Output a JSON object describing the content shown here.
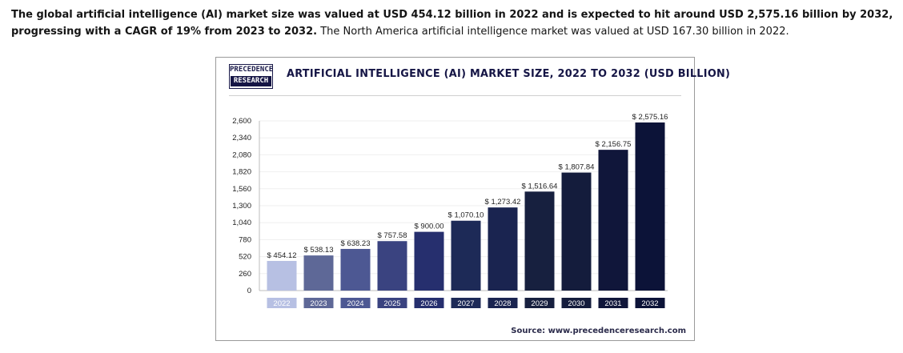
{
  "intro": {
    "sentence1": "The global artificial intelligence (AI) market size was valued at USD 454.12 billion in 2022 and is expected to hit around USD 2,575.16 billion by 2032, progressing with a CAGR of 19% from 2023 to 2032.",
    "sentence2": " The North America artificial intelligence market was valued at USD 167.30 billion in 2022."
  },
  "logo": {
    "line1": "PRECEDENCE",
    "line2": "RESEARCH"
  },
  "source": "Source: www.precedenceresearch.com",
  "colors": {
    "bars": [
      "#b7c0e3",
      "#5e6897",
      "#4d5893",
      "#3a4380",
      "#262f6e",
      "#1d2a57",
      "#1a2450",
      "#17203f",
      "#141c3c",
      "#10163a",
      "#0c1338"
    ],
    "axis_text": "#222222",
    "value_text": "#222222",
    "label_text": "#ffffff"
  },
  "chart_data": {
    "type": "bar",
    "title": "ARTIFICIAL INTELLIGENCE (AI) MARKET SIZE, 2022 TO 2032 (USD BILLION)",
    "xlabel": "",
    "ylabel": "",
    "categories": [
      "2022",
      "2023",
      "2024",
      "2025",
      "2026",
      "2027",
      "2028",
      "2029",
      "2030",
      "2031",
      "2032"
    ],
    "values": [
      454.12,
      538.13,
      638.23,
      757.58,
      900.0,
      1070.1,
      1273.42,
      1516.64,
      1807.84,
      2156.75,
      2575.16
    ],
    "value_labels": [
      "$ 454.12",
      "$ 538.13",
      "$ 638.23",
      "$ 757.58",
      "$ 900.00",
      "$ 1,070.10",
      "$ 1,273.42",
      "$ 1,516.64",
      "$ 1,807.84",
      "$ 2,156.75",
      "$ 2,575.16"
    ],
    "yticks": [
      0,
      260,
      520,
      780,
      1040,
      1300,
      1560,
      1820,
      2080,
      2340,
      2600
    ],
    "ytick_labels": [
      "0",
      "260",
      "520",
      "780",
      "1,040",
      "1,300",
      "1,560",
      "1,820",
      "2,080",
      "2,340",
      "2,600"
    ],
    "ylim": [
      0,
      2600
    ],
    "grid": true,
    "legend": "none"
  }
}
